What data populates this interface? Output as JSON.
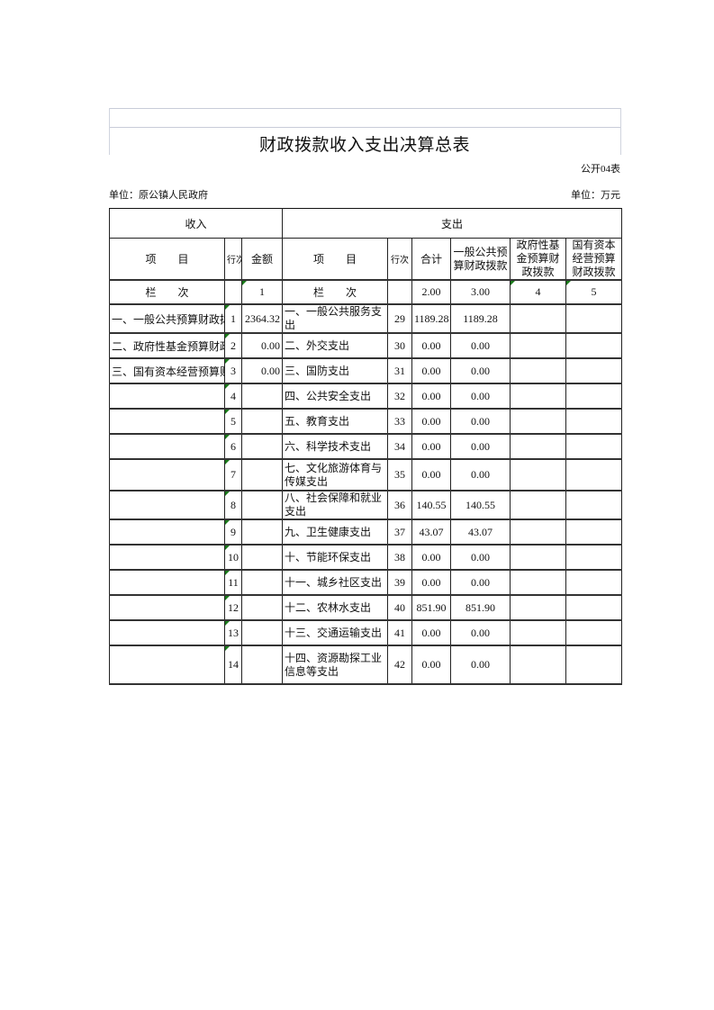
{
  "title": "财政拨款收入支出决算总表",
  "form_code": "公开04表",
  "unit_left": "单位：原公镇人民政府",
  "unit_right": "单位：万元",
  "header": {
    "income": "收入",
    "expense": "支出",
    "item": "项　　目",
    "row_no": "行次",
    "amount": "金额",
    "exp_item": "项　　目",
    "exp_row_no": "行次",
    "total": "合计",
    "general": "一般公共预算财政拨款",
    "fund": "政府性基金预算财政拨款",
    "state_capital": "国有资本经营预算财政拨款"
  },
  "column_index_row": {
    "label": "栏　　次",
    "amount": "1",
    "exp_label": "栏　　次",
    "total": "2.00",
    "general": "3.00",
    "fund": "4",
    "state_capital": "5"
  },
  "rows": [
    {
      "income_item": "一、一般公共预算财政拨款",
      "no": "1",
      "amount": "2364.32",
      "exp_item": "一、一般公共服务支出",
      "exp_no": "29",
      "total": "1189.28",
      "general": "1189.28",
      "fund": "",
      "state": ""
    },
    {
      "income_item": "二、政府性基金预算财政拨款",
      "no": "2",
      "amount": "0.00",
      "exp_item": "二、外交支出",
      "exp_no": "30",
      "total": "0.00",
      "general": "0.00",
      "fund": "",
      "state": ""
    },
    {
      "income_item": "三、国有资本经营预算财政拨款",
      "no": "3",
      "amount": "0.00",
      "exp_item": "三、国防支出",
      "exp_no": "31",
      "total": "0.00",
      "general": "0.00",
      "fund": "",
      "state": ""
    },
    {
      "income_item": "",
      "no": "4",
      "amount": "",
      "exp_item": "四、公共安全支出",
      "exp_no": "32",
      "total": "0.00",
      "general": "0.00",
      "fund": "",
      "state": ""
    },
    {
      "income_item": "",
      "no": "5",
      "amount": "",
      "exp_item": "五、教育支出",
      "exp_no": "33",
      "total": "0.00",
      "general": "0.00",
      "fund": "",
      "state": ""
    },
    {
      "income_item": "",
      "no": "6",
      "amount": "",
      "exp_item": "六、科学技术支出",
      "exp_no": "34",
      "total": "0.00",
      "general": "0.00",
      "fund": "",
      "state": ""
    },
    {
      "income_item": "",
      "no": "7",
      "amount": "",
      "exp_item": "七、文化旅游体育与传媒支出",
      "exp_no": "35",
      "total": "0.00",
      "general": "0.00",
      "fund": "",
      "state": ""
    },
    {
      "income_item": "",
      "no": "8",
      "amount": "",
      "exp_item": "八、社会保障和就业支出",
      "exp_no": "36",
      "total": "140.55",
      "general": "140.55",
      "fund": "",
      "state": ""
    },
    {
      "income_item": "",
      "no": "9",
      "amount": "",
      "exp_item": "九、卫生健康支出",
      "exp_no": "37",
      "total": "43.07",
      "general": "43.07",
      "fund": "",
      "state": ""
    },
    {
      "income_item": "",
      "no": "10",
      "amount": "",
      "exp_item": "十、节能环保支出",
      "exp_no": "38",
      "total": "0.00",
      "general": "0.00",
      "fund": "",
      "state": ""
    },
    {
      "income_item": "",
      "no": "11",
      "amount": "",
      "exp_item": "十一、城乡社区支出",
      "exp_no": "39",
      "total": "0.00",
      "general": "0.00",
      "fund": "",
      "state": ""
    },
    {
      "income_item": "",
      "no": "12",
      "amount": "",
      "exp_item": "十二、农林水支出",
      "exp_no": "40",
      "total": "851.90",
      "general": "851.90",
      "fund": "",
      "state": ""
    },
    {
      "income_item": "",
      "no": "13",
      "amount": "",
      "exp_item": "十三、交通运输支出",
      "exp_no": "41",
      "total": "0.00",
      "general": "0.00",
      "fund": "",
      "state": ""
    },
    {
      "income_item": "",
      "no": "14",
      "amount": "",
      "exp_item": "十四、资源勘探工业信息等支出",
      "exp_no": "42",
      "total": "0.00",
      "general": "0.00",
      "fund": "",
      "state": ""
    }
  ]
}
